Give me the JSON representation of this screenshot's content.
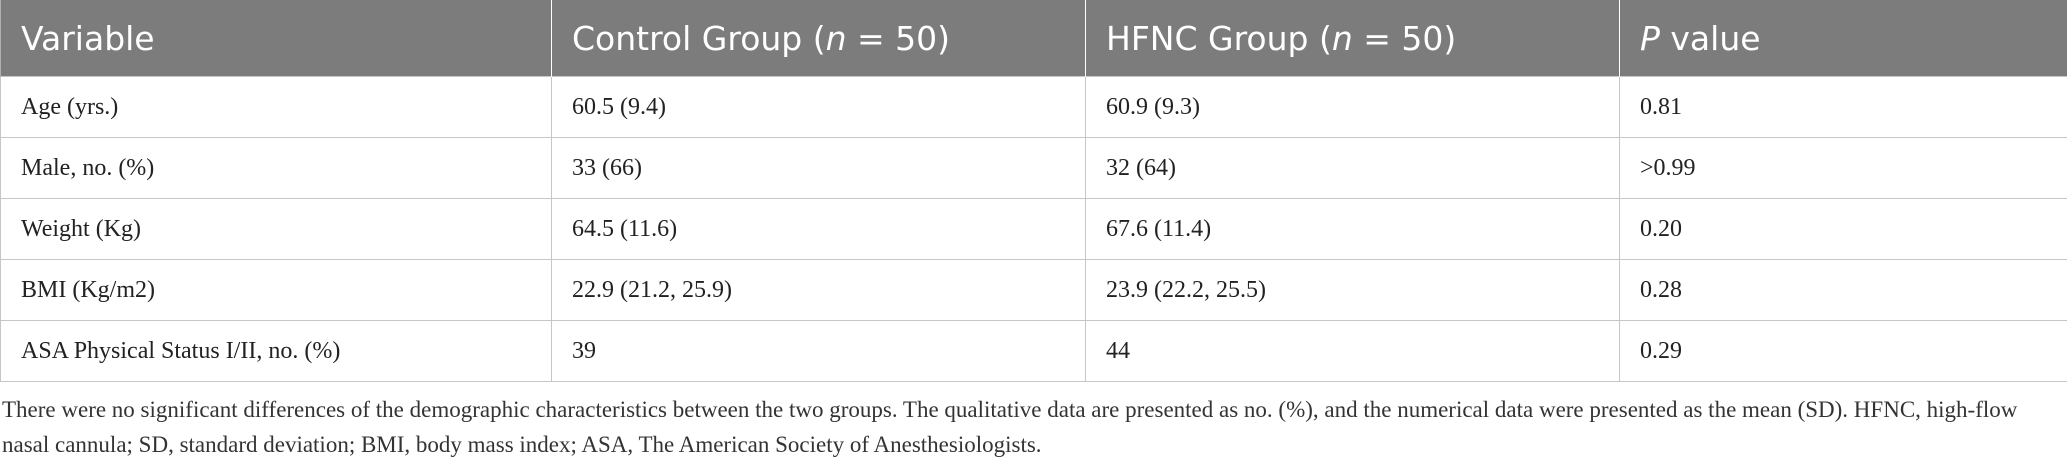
{
  "table": {
    "headers": {
      "variable": "Variable",
      "control_prefix": "Control Group (",
      "control_n": "n",
      "control_suffix": " = 50)",
      "hfnc_prefix": "HFNC Group (",
      "hfnc_n": "n",
      "hfnc_suffix": " = 50)",
      "p_italic": "P",
      "p_suffix": " value"
    },
    "rows": [
      {
        "variable": "Age (yrs.)",
        "control": "60.5 (9.4)",
        "hfnc": "60.9 (9.3)",
        "p": "0.81"
      },
      {
        "variable": "Male, no. (%)",
        "control": "33 (66)",
        "hfnc": "32 (64)",
        "p": ">0.99"
      },
      {
        "variable": "Weight (Kg)",
        "control": "64.5 (11.6)",
        "hfnc": "67.6 (11.4)",
        "p": "0.20"
      },
      {
        "variable": "BMI (Kg/m2)",
        "control": "22.9 (21.2, 25.9)",
        "hfnc": "23.9 (22.2, 25.5)",
        "p": "0.28"
      },
      {
        "variable": "ASA Physical Status I/II, no. (%)",
        "control": "39",
        "hfnc": "44",
        "p": "0.29"
      }
    ]
  },
  "footnote": "There were no significant differences of the demographic characteristics between the two groups. The qualitative data are presented as no. (%), and the numerical data were presented as the mean (SD). HFNC, high-flow nasal cannula; SD, standard deviation; BMI, body mass index; ASA, The American Society of Anesthesiologists.",
  "colors": {
    "header_bg": "#7c7c7c",
    "header_text": "#ffffff",
    "grid_line": "#c6c6c6"
  }
}
